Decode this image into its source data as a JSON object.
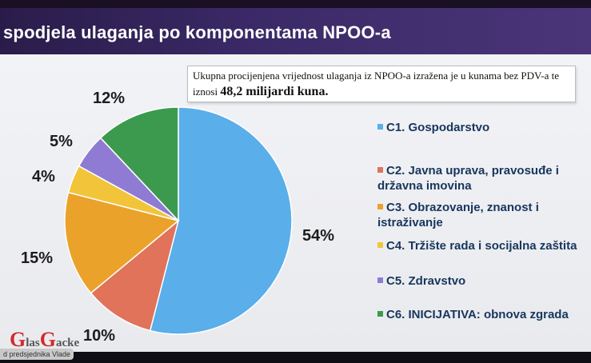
{
  "title": "spodjela ulaganja po komponentama NPOO-a",
  "note": {
    "line1": "Ukupna procijenjena vrijednost ulaganja iz NPOO-a izražena je u kunama bez PDV-a te",
    "line2_prefix": "iznosi ",
    "line2_highlight": "48,2 milijardi kuna."
  },
  "logo": {
    "g1": "G",
    "t1": "las",
    "g2": "G",
    "t2": "acke"
  },
  "caption": "d predsjednika Vlade",
  "legend": [
    {
      "label": "C1. Gospodarstvo"
    },
    {
      "label": "C2. Javna uprava, pravosuđe i državna imovina"
    },
    {
      "label": "C3. Obrazovanje, znanost i istraživanje"
    },
    {
      "label": "C4. Tržište rada i socijalna zaštita"
    },
    {
      "label": "C5. Zdravstvo"
    },
    {
      "label": "C6. INICIJATIVA: obnova zgrada"
    }
  ],
  "colors": {
    "c1": "#5aaeea",
    "c2": "#e0735a",
    "c3": "#eaa22a",
    "c4": "#f2c43a",
    "c5": "#8f7bd3",
    "c6": "#3c9a4e"
  },
  "chart_data": {
    "type": "pie",
    "title": "",
    "categories": [
      "C1. Gospodarstvo",
      "C2. Javna uprava, pravosuđe i državna imovina",
      "C3. Obrazovanje, znanost i istraživanje",
      "C4. Tržište rada i socijalna zaštita",
      "C5. Zdravstvo",
      "C6. INICIJATIVA: obnova zgrada"
    ],
    "values": [
      54,
      10,
      15,
      4,
      5,
      12
    ],
    "labels": [
      "54%",
      "10%",
      "15%",
      "4%",
      "5%",
      "12%"
    ],
    "legend_position": "right"
  }
}
